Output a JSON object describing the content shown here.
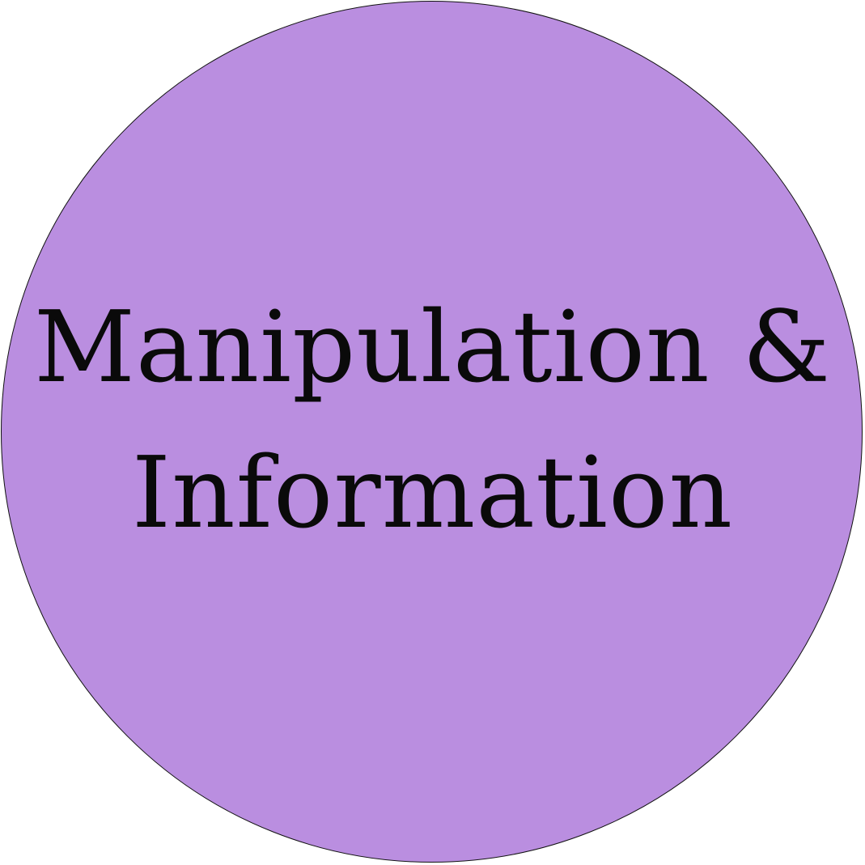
{
  "badge": {
    "fill_color": "#ba8ee0",
    "border_color": "#111111",
    "text_color": "#0a0a0a",
    "lines": [
      "Manipulation &",
      "Information"
    ]
  }
}
